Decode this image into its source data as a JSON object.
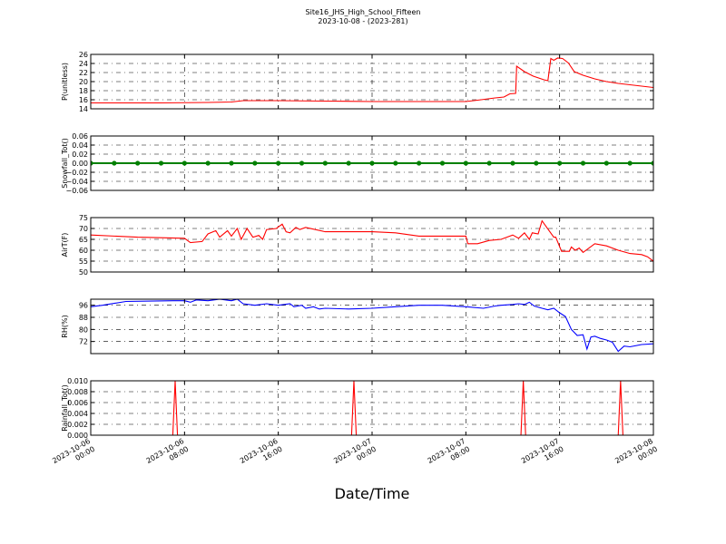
{
  "figure": {
    "title": "Site16_JHS_High_School_Fifteen",
    "subtitle": "2023-10-08 - (2023-281)",
    "xlabel": "Date/Time",
    "xlim": [
      "2023-10-06 00:00",
      "2023-10-08 00:00"
    ],
    "xticks": [
      "2023-10-06 00:00",
      "2023-10-06 08:00",
      "2023-10-06 16:00",
      "2023-10-07 00:00",
      "2023-10-07 08:00",
      "2023-10-07 16:00",
      "2023-10-08 00:00"
    ]
  },
  "chart_data": [
    {
      "type": "line",
      "ylabel": "P(unitless)",
      "color": "#ff0000",
      "ylim": [
        14,
        26
      ],
      "yticks": [
        14,
        16,
        18,
        20,
        22,
        24,
        26
      ],
      "grid": true,
      "x": [
        "2023-10-06 00:00",
        "2023-10-06 06:00",
        "2023-10-06 10:00",
        "2023-10-06 12:00",
        "2023-10-06 13:00",
        "2023-10-06 16:00",
        "2023-10-06 20:00",
        "2023-10-07 00:00",
        "2023-10-07 06:00",
        "2023-10-07 08:00",
        "2023-10-07 09:00",
        "2023-10-07 10:30",
        "2023-10-07 11:15",
        "2023-10-07 11:45",
        "2023-10-07 12:15",
        "2023-10-07 12:20",
        "2023-10-07 13:00",
        "2023-10-07 13:45",
        "2023-10-07 14:40",
        "2023-10-07 15:00",
        "2023-10-07 15:15",
        "2023-10-07 15:30",
        "2023-10-07 15:50",
        "2023-10-07 16:15",
        "2023-10-07 16:45",
        "2023-10-07 17:15",
        "2023-10-07 18:00",
        "2023-10-07 19:00",
        "2023-10-07 20:00",
        "2023-10-07 21:00",
        "2023-10-07 22:00",
        "2023-10-07 23:00",
        "2023-10-08 00:00"
      ],
      "values": [
        15.3,
        15.3,
        15.4,
        15.5,
        15.8,
        15.8,
        15.7,
        15.6,
        15.6,
        15.6,
        15.9,
        16.4,
        16.6,
        17.3,
        17.4,
        23.4,
        22.2,
        21.2,
        20.4,
        20.2,
        25.1,
        24.7,
        25.2,
        25.1,
        24.1,
        22.2,
        21.4,
        20.6,
        20,
        19.6,
        19.3,
        19,
        18.7
      ]
    },
    {
      "type": "line",
      "ylabel": "Snowfall_Tot()",
      "color": "#008000",
      "marker": true,
      "ylim": [
        -0.06,
        0.06
      ],
      "yticks": [
        {
          "value": -0.06,
          "label": "−0.06"
        },
        {
          "value": -0.04,
          "label": "−0.04"
        },
        {
          "value": -0.02,
          "label": "−0.02"
        },
        {
          "value": 0,
          "label": "0.00"
        },
        0.02,
        0.04,
        0.06
      ],
      "grid": true,
      "x": [
        "2023-10-06 00:00",
        "2023-10-06 02:00",
        "2023-10-06 04:00",
        "2023-10-06 06:00",
        "2023-10-06 08:00",
        "2023-10-06 10:00",
        "2023-10-06 12:00",
        "2023-10-06 14:00",
        "2023-10-06 16:00",
        "2023-10-06 18:00",
        "2023-10-06 20:00",
        "2023-10-06 22:00",
        "2023-10-07 00:00",
        "2023-10-07 02:00",
        "2023-10-07 04:00",
        "2023-10-07 06:00",
        "2023-10-07 08:00",
        "2023-10-07 10:00",
        "2023-10-07 12:00",
        "2023-10-07 14:00",
        "2023-10-07 16:00",
        "2023-10-07 18:00",
        "2023-10-07 20:00",
        "2023-10-07 22:00",
        "2023-10-08 00:00"
      ],
      "values": [
        0,
        0,
        0,
        0,
        0,
        0,
        0,
        0,
        0,
        0,
        0,
        0,
        0,
        0,
        0,
        0,
        0,
        0,
        0,
        0,
        0,
        0,
        0,
        0,
        0
      ]
    },
    {
      "type": "line",
      "ylabel": "AirT(F)",
      "color": "#ff0000",
      "ylim": [
        50,
        75
      ],
      "yticks": [
        50,
        55,
        60,
        65,
        70,
        75
      ],
      "grid": true,
      "x": [
        "2023-10-06 00:00",
        "2023-10-06 04:00",
        "2023-10-06 08:00",
        "2023-10-06 08:30",
        "2023-10-06 09:30",
        "2023-10-06 10:00",
        "2023-10-06 10:40",
        "2023-10-06 11:00",
        "2023-10-06 11:40",
        "2023-10-06 12:00",
        "2023-10-06 12:30",
        "2023-10-06 12:50",
        "2023-10-06 13:20",
        "2023-10-06 13:50",
        "2023-10-06 14:20",
        "2023-10-06 14:40",
        "2023-10-06 15:00",
        "2023-10-06 15:50",
        "2023-10-06 16:20",
        "2023-10-06 16:40",
        "2023-10-06 17:00",
        "2023-10-06 17:30",
        "2023-10-06 17:50",
        "2023-10-06 18:20",
        "2023-10-06 20:00",
        "2023-10-07 00:00",
        "2023-10-07 02:00",
        "2023-10-07 04:00",
        "2023-10-07 08:00",
        "2023-10-07 08:10",
        "2023-10-07 09:00",
        "2023-10-07 10:00",
        "2023-10-07 11:00",
        "2023-10-07 12:00",
        "2023-10-07 12:30",
        "2023-10-07 13:00",
        "2023-10-07 13:25",
        "2023-10-07 13:40",
        "2023-10-07 14:10",
        "2023-10-07 14:30",
        "2023-10-07 15:30",
        "2023-10-07 15:40",
        "2023-10-07 16:10",
        "2023-10-07 16:50",
        "2023-10-07 17:00",
        "2023-10-07 17:20",
        "2023-10-07 17:40",
        "2023-10-07 18:00",
        "2023-10-07 19:00",
        "2023-10-07 20:00",
        "2023-10-07 21:00",
        "2023-10-07 22:00",
        "2023-10-07 23:00",
        "2023-10-07 23:30",
        "2023-10-08 00:00"
      ],
      "values": [
        67,
        66,
        65.5,
        63.5,
        64,
        67.5,
        69,
        66,
        69,
        66.5,
        70,
        65,
        70,
        66,
        66.8,
        65,
        69.5,
        70,
        72,
        68.5,
        68,
        70.5,
        69.5,
        70.5,
        68.5,
        68.5,
        68,
        66.5,
        66.5,
        63,
        63,
        64.5,
        65,
        67,
        65.5,
        68,
        65,
        68,
        67.5,
        73.5,
        66,
        66,
        59.5,
        59.5,
        61.5,
        60,
        61,
        59,
        63,
        62,
        60,
        58.5,
        58,
        57,
        55
      ]
    },
    {
      "type": "line",
      "ylabel": "RH(%)",
      "color": "#0000ff",
      "ylim": [
        64,
        100
      ],
      "yticks": [
        72,
        80,
        88,
        96
      ],
      "grid": true,
      "x": [
        "2023-10-06 00:00",
        "2023-10-06 01:00",
        "2023-10-06 03:00",
        "2023-10-06 07:00",
        "2023-10-06 08:00",
        "2023-10-06 08:30",
        "2023-10-06 09:00",
        "2023-10-06 10:00",
        "2023-10-06 11:00",
        "2023-10-06 12:00",
        "2023-10-06 12:30",
        "2023-10-06 13:00",
        "2023-10-06 14:00",
        "2023-10-06 15:00",
        "2023-10-06 16:00",
        "2023-10-06 17:00",
        "2023-10-06 17:20",
        "2023-10-06 18:00",
        "2023-10-06 18:20",
        "2023-10-06 19:00",
        "2023-10-06 19:30",
        "2023-10-06 20:00",
        "2023-10-06 22:00",
        "2023-10-07 00:00",
        "2023-10-07 02:00",
        "2023-10-07 04:00",
        "2023-10-07 06:00",
        "2023-10-07 08:00",
        "2023-10-07 09:30",
        "2023-10-07 10:30",
        "2023-10-07 11:00",
        "2023-10-07 12:00",
        "2023-10-07 12:30",
        "2023-10-07 13:00",
        "2023-10-07 13:25",
        "2023-10-07 13:50",
        "2023-10-07 14:30",
        "2023-10-07 15:00",
        "2023-10-07 15:30",
        "2023-10-07 16:00",
        "2023-10-07 16:30",
        "2023-10-07 17:00",
        "2023-10-07 17:30",
        "2023-10-07 18:00",
        "2023-10-07 18:20",
        "2023-10-07 18:40",
        "2023-10-07 19:00",
        "2023-10-07 19:30",
        "2023-10-07 20:00",
        "2023-10-07 20:30",
        "2023-10-07 21:00",
        "2023-10-07 21:30",
        "2023-10-07 22:00",
        "2023-10-07 23:00",
        "2023-10-08 00:00"
      ],
      "values": [
        95,
        96,
        98.5,
        99,
        99,
        98,
        99.5,
        99,
        100,
        99,
        100,
        97,
        96,
        97,
        96,
        97,
        95,
        96,
        94,
        95,
        93.5,
        94,
        93.5,
        94,
        95,
        96,
        96,
        95,
        94,
        95.5,
        96,
        96.5,
        97,
        96.5,
        98,
        95.5,
        94,
        93,
        94,
        91,
        88.5,
        80,
        76,
        76.5,
        67,
        75,
        75.5,
        74,
        73,
        71.5,
        65.5,
        69,
        68.5,
        70,
        70.5
      ]
    },
    {
      "type": "line",
      "ylabel": "Rainfall_Tot()",
      "color": "#ff0000",
      "ylim": [
        0,
        0.01
      ],
      "yticks": [
        {
          "value": 0,
          "label": "0.000"
        },
        0.002,
        0.004,
        0.006,
        0.008,
        {
          "value": 0.01,
          "label": "0.010"
        }
      ],
      "grid": true,
      "x": [
        "2023-10-06 00:00",
        "2023-10-06 07:00",
        "2023-10-06 07:12",
        "2023-10-06 07:24",
        "2023-10-06 22:15",
        "2023-10-06 22:27",
        "2023-10-06 22:39",
        "2023-10-07 12:42",
        "2023-10-07 12:54",
        "2023-10-07 13:06",
        "2023-10-07 21:00",
        "2023-10-07 21:12",
        "2023-10-07 21:24",
        "2023-10-08 00:00"
      ],
      "values": [
        0,
        0,
        0.01,
        0,
        0,
        0.01,
        0,
        0,
        0.01,
        0,
        0,
        0.01,
        0,
        0
      ]
    }
  ]
}
